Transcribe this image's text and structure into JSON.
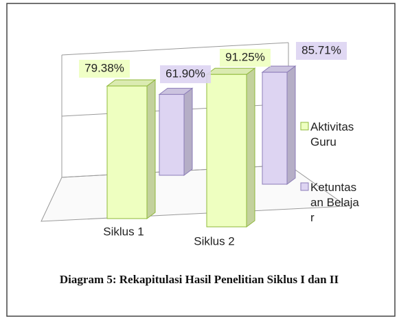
{
  "chart_data": {
    "type": "bar3d",
    "caption": "Diagram 5: Rekapitulasi Hasil Penelitian Siklus I dan II",
    "categories": [
      "Siklus 1",
      "Siklus 2"
    ],
    "series": [
      {
        "name": "Aktivitas Guru",
        "color": "#eeffc0",
        "values": [
          79.38,
          91.25
        ],
        "value_labels": [
          "79.38%",
          "91.25%"
        ]
      },
      {
        "name": "Ketuntasan Belajar",
        "color": "#ddd4f2",
        "values": [
          61.9,
          85.71
        ],
        "value_labels": [
          "61.90%",
          "85.71%"
        ]
      }
    ],
    "ylim": [
      0,
      100
    ],
    "yticks": [
      0,
      50,
      100
    ],
    "grid": true
  }
}
